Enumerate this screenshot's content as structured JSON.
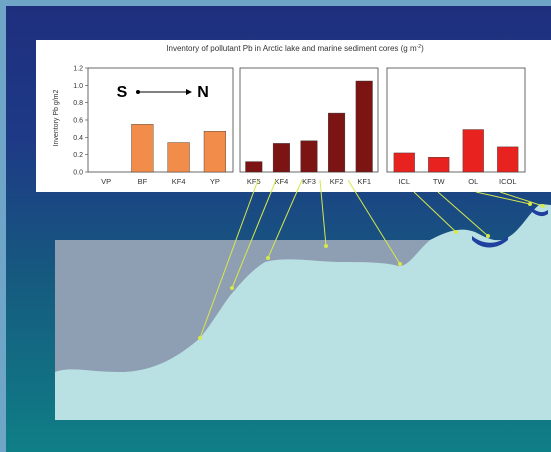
{
  "chart_data": {
    "title": "Inventory of pollutant Pb in Arctic lake and marine sediment cores (g m",
    "title_sup": "-2",
    "title_tail": ")",
    "ylabel": "Inventory Pb g/m2",
    "ylim": [
      0,
      1.2
    ],
    "yticks": [
      "0.0",
      "0.2",
      "0.4",
      "0.6",
      "0.8",
      "1.0",
      "1.2"
    ],
    "direction": {
      "left": "S",
      "right": "N"
    },
    "panels": [
      {
        "type": "bar",
        "categories": [
          "VP",
          "BF",
          "KF4",
          "YP"
        ],
        "values": [
          0,
          0.55,
          0.34,
          0.47
        ],
        "color": "#f28c4a"
      },
      {
        "type": "bar",
        "categories": [
          "KF5",
          "KF4",
          "KF3",
          "KF2",
          "KF1"
        ],
        "values": [
          0.12,
          0.33,
          0.36,
          0.68,
          1.05
        ],
        "color": "#7c1414"
      },
      {
        "type": "bar",
        "categories": [
          "ICL",
          "TW",
          "OL",
          "ICOL"
        ],
        "values": [
          0.22,
          0.17,
          0.49,
          0.29
        ],
        "color": "#e8221f"
      }
    ]
  }
}
